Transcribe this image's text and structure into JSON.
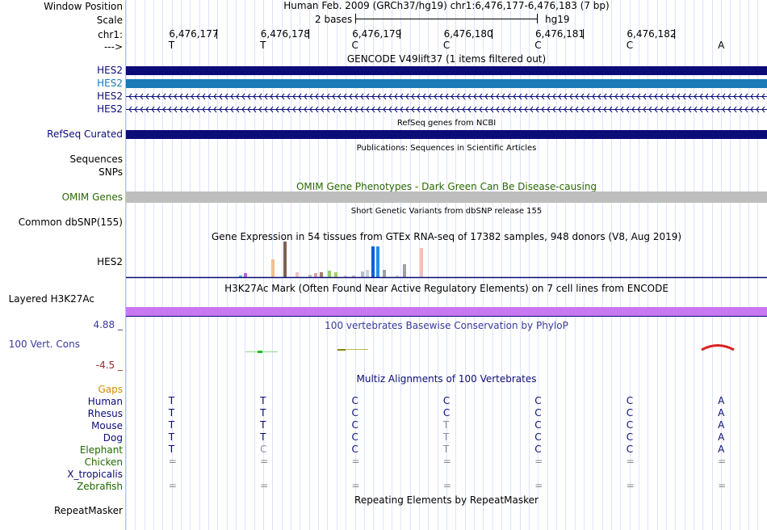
{
  "header": {
    "title": "Human Feb. 2009 (GRCh37/hg19)   chr1:6,476,177-6,476,183 (7 bp)",
    "scale_text": "2 bases",
    "assembly": "hg19"
  },
  "left_labels": {
    "window_position": "Window Position",
    "scale": "Scale",
    "chr": "chr1:",
    "strand": "--->",
    "hes2_1": "HES2",
    "hes2_2": "HES2",
    "hes2_3": "HES2",
    "hes2_4": "HES2",
    "refseq": "RefSeq Curated",
    "sequences": "Sequences",
    "snps": "SNPs",
    "omim": "OMIM Genes",
    "dbsnp": "Common dbSNP(155)",
    "gtex": "HES2",
    "h3k27ac": "Layered H3K27Ac",
    "cons_max": "4.88 _",
    "cons": "100 Vert. Cons",
    "cons_min": "-4.5 _",
    "gaps": "Gaps",
    "repeatmasker": "RepeatMasker"
  },
  "ruler": {
    "positions": [
      "6,476,177",
      "6,476,178",
      "6,476,179",
      "6,476,180",
      "6,476,181",
      "6,476,182"
    ],
    "bases": [
      "T",
      "T",
      "C",
      "C",
      "C",
      "C",
      "A"
    ]
  },
  "tracks": {
    "gencode": "GENCODE V49lift37 (1 items filtered out)",
    "refseq": "RefSeq genes from NCBI",
    "publications": "Publications: Sequences in Scientific Articles",
    "omim": "OMIM Gene Phenotypes - Dark Green Can Be Disease-causing",
    "dbsnp": "Short Genetic Variants from dbSNP release 155",
    "gtex": "Gene Expression in 54 tissues from GTEx RNA-seq of 17382 samples, 948 donors (V8, Aug 2019)",
    "h3k27ac": "H3K27Ac Mark (Often Found Near Active Regulatory Elements) on 7 cell lines from ENCODE",
    "phylop": "100 vertebrates Basewise Conservation by PhyloP",
    "multiz": "Multiz Alignments of 100 Vertebrates",
    "repeatmasker": "Repeating Elements by RepeatMasker"
  },
  "species": [
    {
      "name": "Human",
      "bases": [
        "T",
        "T",
        "C",
        "C",
        "C",
        "C",
        "A"
      ]
    },
    {
      "name": "Rhesus",
      "bases": [
        "T",
        "T",
        "C",
        "C",
        "C",
        "C",
        "A"
      ]
    },
    {
      "name": "Mouse",
      "bases": [
        "T",
        "T",
        "C",
        "T",
        "C",
        "C",
        "A"
      ]
    },
    {
      "name": "Dog",
      "bases": [
        "T",
        "T",
        "C",
        "T",
        "C",
        "C",
        "A"
      ]
    },
    {
      "name": "Elephant",
      "bases": [
        "T",
        "C",
        "C",
        "T",
        "C",
        "C",
        "A"
      ]
    },
    {
      "name": "Chicken",
      "bases": [
        "=",
        "=",
        "=",
        "=",
        "=",
        "=",
        "="
      ]
    },
    {
      "name": "X_tropicalis",
      "bases": [
        "",
        "",
        "",
        "",
        "",
        "",
        ""
      ]
    },
    {
      "name": "Zebrafish",
      "bases": [
        "=",
        "=",
        "=",
        "=",
        "=",
        "=",
        "="
      ]
    }
  ],
  "colors": {
    "gene_dark": "#0c0c78",
    "gene_light": "#1a7ab8",
    "omim_gray": "#bebebe",
    "h3k27ac": "#c878f0",
    "phylop_blue": "#3a3a9a",
    "phylop_red": "#9a2a2a",
    "omim_green": "#2a6a00",
    "gaps_orange": "#d28c00",
    "mammal_blue": "#0c0c78",
    "vert_green": "#1e6a00"
  }
}
